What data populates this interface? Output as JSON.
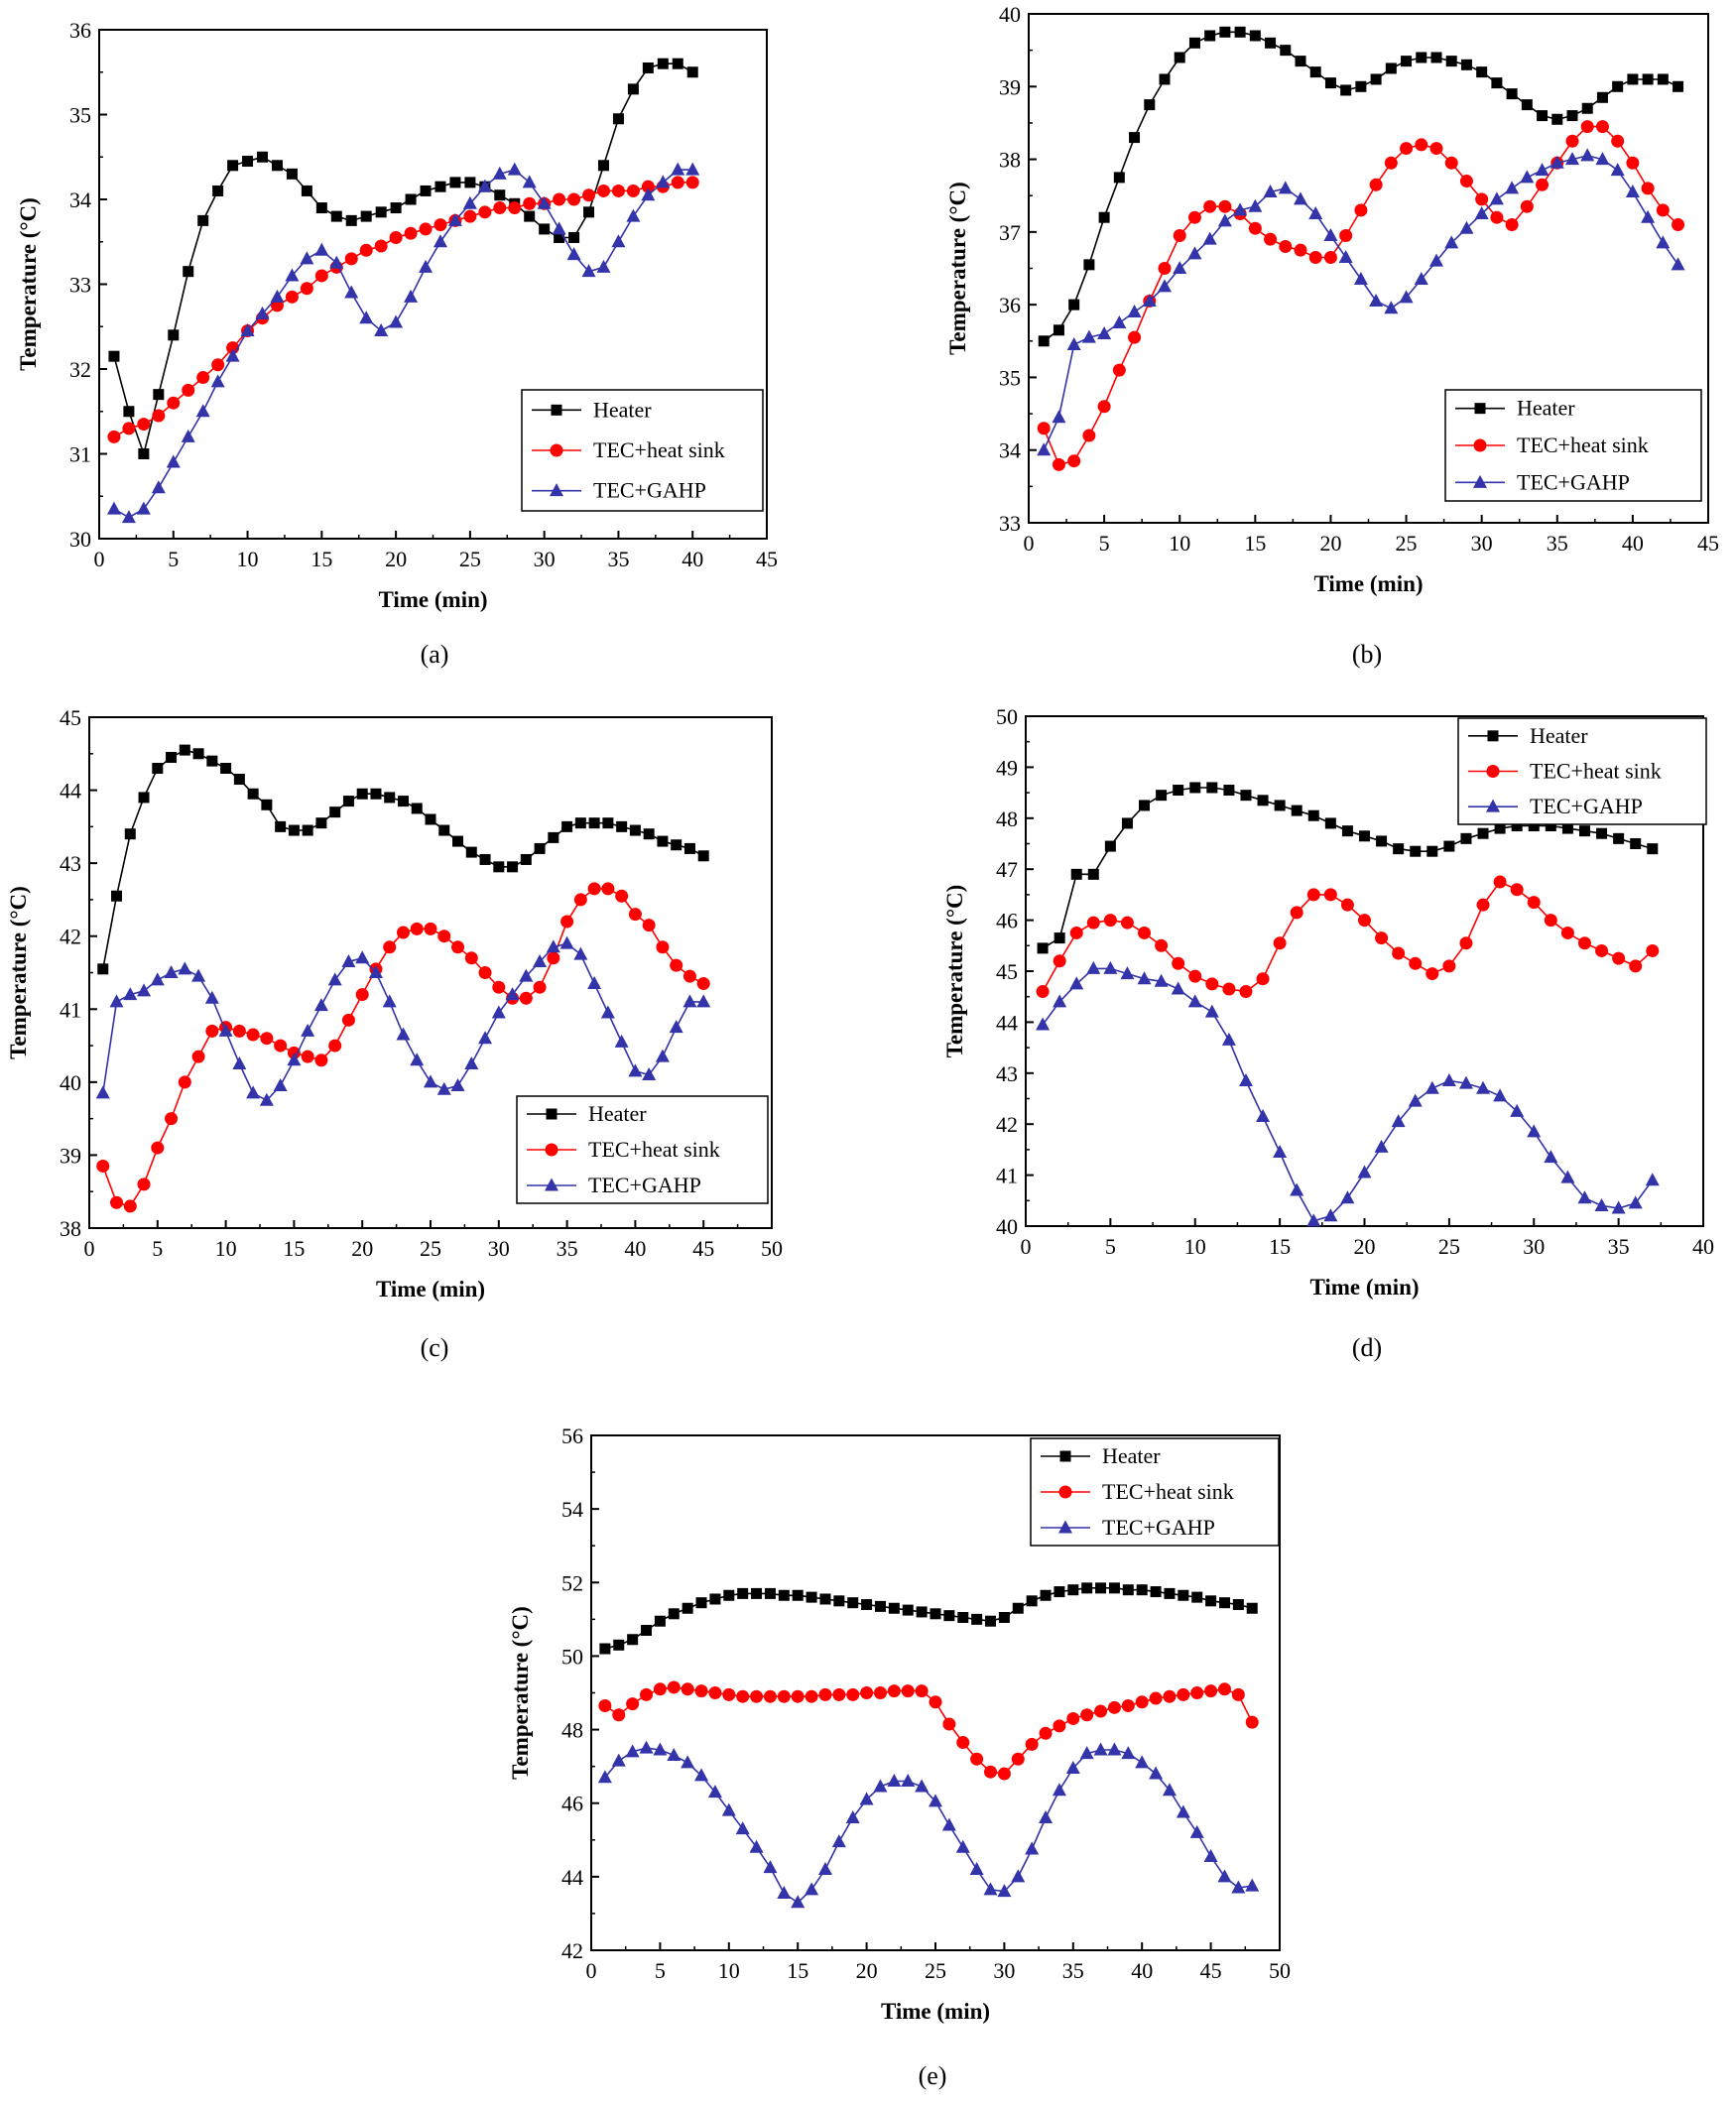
{
  "colors": {
    "heater": "#000000",
    "tec_heat_sink": "#ff0000",
    "tec_gahp": "#3333aa"
  },
  "chart_data": [
    {
      "type": "line",
      "panel": "(a)",
      "xlabel": "Time (min)",
      "ylabel": "Temperature (°C)",
      "xlim": [
        0,
        45
      ],
      "ylim": [
        30,
        36
      ],
      "xticks": [
        0,
        5,
        10,
        15,
        20,
        25,
        30,
        35,
        40,
        45
      ],
      "yticks": [
        30,
        31,
        32,
        33,
        34,
        35,
        36
      ],
      "legend_position": "bottom-right",
      "x": [
        1,
        2,
        3,
        4,
        5,
        6,
        7,
        8,
        9,
        10,
        11,
        12,
        13,
        14,
        15,
        16,
        17,
        18,
        19,
        20,
        21,
        22,
        23,
        24,
        25,
        26,
        27,
        28,
        29,
        30,
        31,
        32,
        33,
        34,
        35,
        36,
        37,
        38,
        39,
        40
      ],
      "series": [
        {
          "name": "Heater",
          "marker": "square",
          "values": [
            32.15,
            31.5,
            31.0,
            31.7,
            32.4,
            33.15,
            33.75,
            34.1,
            34.4,
            34.45,
            34.5,
            34.4,
            34.3,
            34.1,
            33.9,
            33.8,
            33.75,
            33.8,
            33.85,
            33.9,
            34.0,
            34.1,
            34.15,
            34.2,
            34.2,
            34.15,
            34.05,
            33.95,
            33.8,
            33.65,
            33.55,
            33.55,
            33.85,
            34.4,
            34.95,
            35.3,
            35.55,
            35.6,
            35.6,
            35.5
          ]
        },
        {
          "name": "TEC+heat sink",
          "marker": "circle",
          "values": [
            31.2,
            31.3,
            31.35,
            31.45,
            31.6,
            31.75,
            31.9,
            32.05,
            32.25,
            32.45,
            32.6,
            32.75,
            32.85,
            32.95,
            33.1,
            33.2,
            33.3,
            33.4,
            33.45,
            33.55,
            33.6,
            33.65,
            33.7,
            33.75,
            33.8,
            33.85,
            33.9,
            33.9,
            33.95,
            33.95,
            34.0,
            34.0,
            34.05,
            34.1,
            34.1,
            34.1,
            34.15,
            34.15,
            34.2,
            34.2
          ]
        },
        {
          "name": "TEC+GAHP",
          "marker": "triangle",
          "values": [
            30.35,
            30.25,
            30.35,
            30.6,
            30.9,
            31.2,
            31.5,
            31.85,
            32.15,
            32.45,
            32.65,
            32.85,
            33.1,
            33.3,
            33.4,
            33.25,
            32.9,
            32.6,
            32.45,
            32.55,
            32.85,
            33.2,
            33.5,
            33.75,
            33.95,
            34.15,
            34.3,
            34.35,
            34.2,
            33.95,
            33.65,
            33.35,
            33.15,
            33.2,
            33.5,
            33.8,
            34.05,
            34.2,
            34.35,
            34.35
          ]
        }
      ]
    },
    {
      "type": "line",
      "panel": "(b)",
      "xlabel": "Time (min)",
      "ylabel": "Temperature (°C)",
      "xlim": [
        0,
        45
      ],
      "ylim": [
        33,
        40
      ],
      "xticks": [
        0,
        5,
        10,
        15,
        20,
        25,
        30,
        35,
        40,
        45
      ],
      "yticks": [
        33,
        34,
        35,
        36,
        37,
        38,
        39,
        40
      ],
      "legend_position": "bottom-right",
      "x": [
        1,
        2,
        3,
        4,
        5,
        6,
        7,
        8,
        9,
        10,
        11,
        12,
        13,
        14,
        15,
        16,
        17,
        18,
        19,
        20,
        21,
        22,
        23,
        24,
        25,
        26,
        27,
        28,
        29,
        30,
        31,
        32,
        33,
        34,
        35,
        36,
        37,
        38,
        39,
        40,
        41,
        42,
        43
      ],
      "series": [
        {
          "name": "Heater",
          "marker": "square",
          "values": [
            35.5,
            35.65,
            36.0,
            36.55,
            37.2,
            37.75,
            38.3,
            38.75,
            39.1,
            39.4,
            39.6,
            39.7,
            39.75,
            39.75,
            39.7,
            39.6,
            39.5,
            39.35,
            39.2,
            39.05,
            38.95,
            39.0,
            39.1,
            39.25,
            39.35,
            39.4,
            39.4,
            39.35,
            39.3,
            39.2,
            39.05,
            38.9,
            38.75,
            38.6,
            38.55,
            38.6,
            38.7,
            38.85,
            39.0,
            39.1,
            39.1,
            39.1,
            39.0
          ]
        },
        {
          "name": "TEC+heat sink",
          "marker": "circle",
          "values": [
            34.3,
            33.8,
            33.85,
            34.2,
            34.6,
            35.1,
            35.55,
            36.05,
            36.5,
            36.95,
            37.2,
            37.35,
            37.35,
            37.25,
            37.05,
            36.9,
            36.8,
            36.75,
            36.65,
            36.65,
            36.95,
            37.3,
            37.65,
            37.95,
            38.15,
            38.2,
            38.15,
            37.95,
            37.7,
            37.45,
            37.2,
            37.1,
            37.35,
            37.65,
            37.95,
            38.25,
            38.45,
            38.45,
            38.25,
            37.95,
            37.6,
            37.3,
            37.1
          ]
        },
        {
          "name": "TEC+GAHP",
          "marker": "triangle",
          "values": [
            34.0,
            34.45,
            35.45,
            35.55,
            35.6,
            35.75,
            35.9,
            36.05,
            36.25,
            36.5,
            36.7,
            36.9,
            37.15,
            37.3,
            37.35,
            37.55,
            37.6,
            37.45,
            37.25,
            36.95,
            36.65,
            36.35,
            36.05,
            35.95,
            36.1,
            36.35,
            36.6,
            36.85,
            37.05,
            37.25,
            37.45,
            37.6,
            37.75,
            37.85,
            37.95,
            38.0,
            38.05,
            38.0,
            37.85,
            37.55,
            37.2,
            36.85,
            36.55
          ]
        }
      ]
    },
    {
      "type": "line",
      "panel": "(c)",
      "xlabel": "Time (min)",
      "ylabel": "Temperature (°C)",
      "xlim": [
        0,
        50
      ],
      "ylim": [
        38,
        45
      ],
      "xticks": [
        0,
        5,
        10,
        15,
        20,
        25,
        30,
        35,
        40,
        45,
        50
      ],
      "yticks": [
        38,
        39,
        40,
        41,
        42,
        43,
        44,
        45
      ],
      "legend_position": "bottom-right",
      "x": [
        1,
        2,
        3,
        4,
        5,
        6,
        7,
        8,
        9,
        10,
        11,
        12,
        13,
        14,
        15,
        16,
        17,
        18,
        19,
        20,
        21,
        22,
        23,
        24,
        25,
        26,
        27,
        28,
        29,
        30,
        31,
        32,
        33,
        34,
        35,
        36,
        37,
        38,
        39,
        40,
        41,
        42,
        43,
        44,
        45
      ],
      "series": [
        {
          "name": "Heater",
          "marker": "square",
          "values": [
            41.55,
            42.55,
            43.4,
            43.9,
            44.3,
            44.45,
            44.55,
            44.5,
            44.4,
            44.3,
            44.15,
            43.95,
            43.8,
            43.5,
            43.45,
            43.45,
            43.55,
            43.7,
            43.85,
            43.95,
            43.95,
            43.9,
            43.85,
            43.75,
            43.6,
            43.45,
            43.3,
            43.15,
            43.05,
            42.95,
            42.95,
            43.05,
            43.2,
            43.35,
            43.5,
            43.55,
            43.55,
            43.55,
            43.5,
            43.45,
            43.4,
            43.3,
            43.25,
            43.2,
            43.1
          ]
        },
        {
          "name": "TEC+heat sink",
          "marker": "circle",
          "values": [
            38.85,
            38.35,
            38.3,
            38.6,
            39.1,
            39.5,
            40.0,
            40.35,
            40.7,
            40.75,
            40.7,
            40.65,
            40.6,
            40.5,
            40.4,
            40.35,
            40.3,
            40.5,
            40.85,
            41.2,
            41.55,
            41.85,
            42.05,
            42.1,
            42.1,
            42.0,
            41.85,
            41.7,
            41.5,
            41.3,
            41.15,
            41.15,
            41.3,
            41.7,
            42.2,
            42.5,
            42.65,
            42.65,
            42.55,
            42.3,
            42.15,
            41.85,
            41.6,
            41.45,
            41.35
          ]
        },
        {
          "name": "TEC+GAHP",
          "marker": "triangle",
          "values": [
            39.85,
            41.1,
            41.2,
            41.25,
            41.4,
            41.5,
            41.55,
            41.45,
            41.15,
            40.7,
            40.25,
            39.85,
            39.75,
            39.95,
            40.3,
            40.7,
            41.05,
            41.4,
            41.65,
            41.7,
            41.5,
            41.1,
            40.65,
            40.3,
            40.0,
            39.9,
            39.95,
            40.25,
            40.6,
            40.95,
            41.2,
            41.45,
            41.65,
            41.85,
            41.9,
            41.75,
            41.35,
            40.95,
            40.55,
            40.15,
            40.1,
            40.35,
            40.75,
            41.1,
            41.1
          ]
        }
      ]
    },
    {
      "type": "line",
      "panel": "(d)",
      "xlabel": "Time (min)",
      "ylabel": "Temperature (°C)",
      "xlim": [
        0,
        40
      ],
      "ylim": [
        40,
        50
      ],
      "xticks": [
        0,
        5,
        10,
        15,
        20,
        25,
        30,
        35,
        40
      ],
      "yticks": [
        40,
        41,
        42,
        43,
        44,
        45,
        46,
        47,
        48,
        49,
        50
      ],
      "legend_position": "top-right",
      "x": [
        1,
        2,
        3,
        4,
        5,
        6,
        7,
        8,
        9,
        10,
        11,
        12,
        13,
        14,
        15,
        16,
        17,
        18,
        19,
        20,
        21,
        22,
        23,
        24,
        25,
        26,
        27,
        28,
        29,
        30,
        31,
        32,
        33,
        34,
        35,
        36,
        37
      ],
      "series": [
        {
          "name": "Heater",
          "marker": "square",
          "values": [
            45.45,
            45.65,
            46.9,
            46.9,
            47.45,
            47.9,
            48.25,
            48.45,
            48.55,
            48.6,
            48.6,
            48.55,
            48.45,
            48.35,
            48.25,
            48.15,
            48.05,
            47.9,
            47.75,
            47.65,
            47.55,
            47.4,
            47.35,
            47.35,
            47.45,
            47.6,
            47.7,
            47.8,
            47.85,
            47.85,
            47.85,
            47.8,
            47.75,
            47.7,
            47.6,
            47.5,
            47.4
          ]
        },
        {
          "name": "TEC+heat sink",
          "marker": "circle",
          "values": [
            44.6,
            45.2,
            45.75,
            45.95,
            46.0,
            45.95,
            45.75,
            45.5,
            45.15,
            44.9,
            44.75,
            44.65,
            44.6,
            44.85,
            45.55,
            46.15,
            46.5,
            46.5,
            46.3,
            46.0,
            45.65,
            45.35,
            45.15,
            44.95,
            45.1,
            45.55,
            46.3,
            46.75,
            46.6,
            46.35,
            46.0,
            45.75,
            45.55,
            45.4,
            45.25,
            45.1,
            45.4
          ]
        },
        {
          "name": "TEC+GAHP",
          "marker": "triangle",
          "values": [
            43.95,
            44.4,
            44.75,
            45.05,
            45.05,
            44.95,
            44.85,
            44.8,
            44.65,
            44.4,
            44.2,
            43.65,
            42.85,
            42.15,
            41.45,
            40.7,
            40.1,
            40.2,
            40.55,
            41.05,
            41.55,
            42.05,
            42.45,
            42.7,
            42.85,
            42.8,
            42.7,
            42.55,
            42.25,
            41.85,
            41.35,
            40.95,
            40.55,
            40.4,
            40.35,
            40.45,
            40.9
          ]
        }
      ]
    },
    {
      "type": "line",
      "panel": "(e)",
      "xlabel": "Time (min)",
      "ylabel": "Temperature (°C)",
      "xlim": [
        0,
        50
      ],
      "ylim": [
        42,
        56
      ],
      "xticks": [
        0,
        5,
        10,
        15,
        20,
        25,
        30,
        35,
        40,
        45,
        50
      ],
      "yticks": [
        42,
        44,
        46,
        48,
        50,
        52,
        54,
        56
      ],
      "legend_position": "top-right",
      "x": [
        1,
        2,
        3,
        4,
        5,
        6,
        7,
        8,
        9,
        10,
        11,
        12,
        13,
        14,
        15,
        16,
        17,
        18,
        19,
        20,
        21,
        22,
        23,
        24,
        25,
        26,
        27,
        28,
        29,
        30,
        31,
        32,
        33,
        34,
        35,
        36,
        37,
        38,
        39,
        40,
        41,
        42,
        43,
        44,
        45,
        46,
        47,
        48
      ],
      "series": [
        {
          "name": "Heater",
          "marker": "square",
          "values": [
            50.2,
            50.3,
            50.45,
            50.7,
            50.95,
            51.15,
            51.3,
            51.45,
            51.55,
            51.65,
            51.7,
            51.7,
            51.7,
            51.65,
            51.65,
            51.6,
            51.55,
            51.5,
            51.45,
            51.4,
            51.35,
            51.3,
            51.25,
            51.2,
            51.15,
            51.1,
            51.05,
            51.0,
            50.95,
            51.05,
            51.3,
            51.5,
            51.65,
            51.75,
            51.8,
            51.85,
            51.85,
            51.85,
            51.8,
            51.8,
            51.75,
            51.7,
            51.65,
            51.6,
            51.5,
            51.45,
            51.4,
            51.3
          ]
        },
        {
          "name": "TEC+heat sink",
          "marker": "circle",
          "values": [
            48.65,
            48.4,
            48.7,
            48.95,
            49.1,
            49.15,
            49.1,
            49.05,
            49.0,
            48.95,
            48.9,
            48.9,
            48.9,
            48.9,
            48.9,
            48.9,
            48.95,
            48.95,
            48.95,
            49.0,
            49.0,
            49.05,
            49.05,
            49.05,
            48.75,
            48.15,
            47.65,
            47.2,
            46.85,
            46.8,
            47.2,
            47.6,
            47.9,
            48.1,
            48.3,
            48.4,
            48.5,
            48.6,
            48.65,
            48.75,
            48.85,
            48.9,
            48.95,
            49.0,
            49.05,
            49.1,
            48.95,
            48.2
          ]
        },
        {
          "name": "TEC+GAHP",
          "marker": "triangle",
          "values": [
            46.7,
            47.15,
            47.4,
            47.5,
            47.45,
            47.3,
            47.1,
            46.75,
            46.3,
            45.8,
            45.3,
            44.8,
            44.25,
            43.55,
            43.3,
            43.65,
            44.2,
            44.95,
            45.6,
            46.1,
            46.45,
            46.6,
            46.6,
            46.45,
            46.05,
            45.4,
            44.8,
            44.2,
            43.65,
            43.6,
            44.0,
            44.75,
            45.6,
            46.35,
            46.95,
            47.35,
            47.45,
            47.45,
            47.35,
            47.1,
            46.8,
            46.35,
            45.75,
            45.2,
            44.55,
            44.0,
            43.7,
            43.75
          ]
        }
      ]
    }
  ]
}
